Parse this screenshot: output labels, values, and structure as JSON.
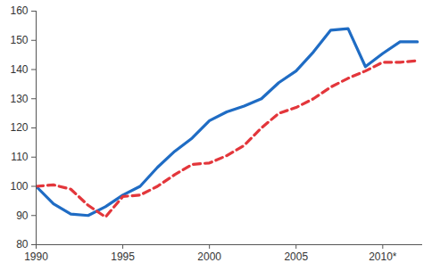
{
  "chart_data": {
    "type": "line",
    "x": [
      1990,
      1991,
      1992,
      1993,
      1994,
      1995,
      1996,
      1997,
      1998,
      1999,
      2000,
      2001,
      2002,
      2003,
      2004,
      2005,
      2006,
      2007,
      2008,
      2009,
      2010,
      2011,
      2012
    ],
    "series": [
      {
        "color": "#1f6cc4",
        "line_style": "solid",
        "values": [
          100,
          94,
          90.5,
          90,
          93,
          97,
          100,
          106.5,
          112,
          116.5,
          122.5,
          125.5,
          127.5,
          130,
          135.5,
          139.5,
          146,
          153.5,
          154,
          141,
          145.5,
          149.5,
          149.5
        ]
      },
      {
        "color": "#e3363b",
        "line_style": "dashed",
        "values": [
          100,
          100.5,
          99,
          93.5,
          89.5,
          96.5,
          97,
          100,
          104,
          107.5,
          108,
          110.5,
          114,
          120,
          125,
          127,
          130,
          134,
          137,
          139.5,
          142.5,
          142.5,
          143
        ]
      }
    ],
    "xlim": [
      1990,
      2012.3
    ],
    "xticks": [
      1990,
      1995,
      2000,
      2005,
      {
        "value": 2010,
        "label": "2010*"
      }
    ],
    "ylim": [
      80,
      160
    ],
    "yticks": [
      80,
      90,
      100,
      110,
      120,
      130,
      140,
      150,
      160
    ],
    "grid": false
  }
}
